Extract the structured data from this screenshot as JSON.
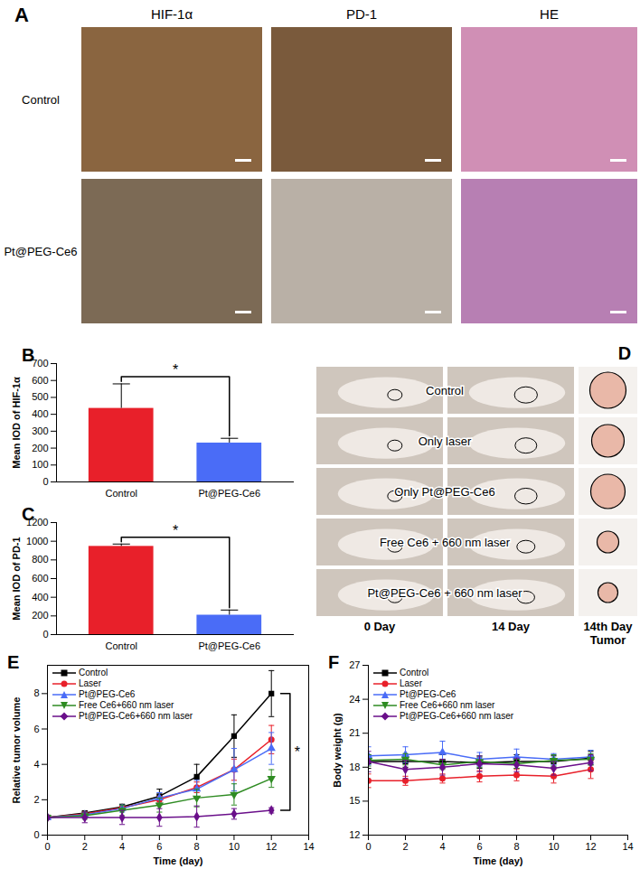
{
  "images": {
    "panel_A": {
      "label": "A",
      "columns": [
        "HIF-1α",
        "PD-1",
        "HE"
      ],
      "rows": [
        "Control",
        "Pt@PEG-Ce6"
      ]
    },
    "panel_D": {
      "label": "D",
      "rows": [
        "Control",
        "Only laser",
        "Only Pt@PEG-Ce6",
        "Free Ce6 + 660 nm laser",
        "Pt@PEG-Ce6 + 660 nm laser"
      ],
      "columns": [
        [
          "0 Day"
        ],
        [
          "14 Day"
        ],
        [
          "14th Day",
          "Tumor"
        ]
      ]
    }
  },
  "chart_data": [
    {
      "panel": "B",
      "type": "bar",
      "categories": [
        "Control",
        "Pt@PEG-Ce6"
      ],
      "values": [
        435,
        230
      ],
      "errors": [
        145,
        28
      ],
      "colors": [
        "#e8202a",
        "#4a6cf7"
      ],
      "y_label": "Mean IOD of HIF-1α",
      "ylim": [
        0,
        700
      ],
      "yticks": [
        0,
        100,
        200,
        300,
        400,
        500,
        600,
        700
      ],
      "annotations": [
        {
          "text": "*",
          "between": [
            "Control",
            "Pt@PEG-Ce6"
          ]
        }
      ]
    },
    {
      "panel": "C",
      "type": "bar",
      "categories": [
        "Control",
        "Pt@PEG-Ce6"
      ],
      "values": [
        945,
        208
      ],
      "errors": [
        25,
        55
      ],
      "colors": [
        "#e8202a",
        "#4a6cf7"
      ],
      "y_label": "Mean IOD of PD-1",
      "ylim": [
        0,
        1200
      ],
      "yticks": [
        0,
        200,
        400,
        600,
        800,
        1000,
        1200
      ],
      "annotations": [
        {
          "text": "*",
          "between": [
            "Control",
            "Pt@PEG-Ce6"
          ]
        }
      ]
    },
    {
      "panel": "E",
      "type": "line",
      "x_label": "Time (day)",
      "y_label": "Relative tumor volume",
      "x": [
        0,
        2,
        4,
        6,
        8,
        10,
        12
      ],
      "xlim": [
        0,
        14
      ],
      "xticks": [
        0,
        2,
        4,
        6,
        8,
        10,
        12,
        14
      ],
      "ylim": [
        0,
        9.6
      ],
      "yticks": [
        0,
        2,
        4,
        6,
        8
      ],
      "legend": "top-left",
      "series": [
        {
          "name": "Control",
          "color": "#000000",
          "marker": "square",
          "values": [
            1,
            1.25,
            1.6,
            2.2,
            3.3,
            5.6,
            8.0
          ],
          "errors": [
            0,
            0.1,
            0.15,
            0.4,
            0.7,
            1.2,
            1.3
          ]
        },
        {
          "name": "Laser",
          "color": "#e8202a",
          "marker": "circle",
          "values": [
            1,
            1.2,
            1.55,
            2.0,
            2.7,
            3.7,
            5.4
          ],
          "errors": [
            0,
            0.1,
            0.1,
            0.2,
            0.3,
            0.6,
            0.8
          ]
        },
        {
          "name": "Pt@PEG-Ce6",
          "color": "#4a6cf7",
          "marker": "triangle",
          "values": [
            1,
            1.15,
            1.5,
            2.1,
            2.6,
            3.7,
            4.9
          ],
          "errors": [
            0,
            0.1,
            0.2,
            0.3,
            0.5,
            1.2,
            0.9
          ]
        },
        {
          "name": "Free Ce6+660 nm laser",
          "color": "#2e8b22",
          "marker": "triangle-down",
          "values": [
            1,
            1.1,
            1.4,
            1.7,
            2.1,
            2.3,
            3.2
          ],
          "errors": [
            0,
            0.2,
            0.3,
            0.4,
            0.5,
            0.6,
            0.5
          ]
        },
        {
          "name": "Pt@PEG-Ce6+660 nm laser",
          "color": "#6a0f8a",
          "marker": "diamond",
          "values": [
            1,
            1.0,
            1.0,
            1.0,
            1.05,
            1.2,
            1.4
          ],
          "errors": [
            0,
            0.3,
            0.4,
            0.5,
            0.6,
            0.3,
            0.15
          ]
        }
      ],
      "annotations": [
        {
          "text": "*",
          "between": [
            "Control",
            "Pt@PEG-Ce6+660 nm laser"
          ]
        }
      ]
    },
    {
      "panel": "F",
      "type": "line",
      "x_label": "Time (day)",
      "y_label": "Body weight (g)",
      "x": [
        0,
        2,
        4,
        6,
        8,
        10,
        12
      ],
      "xlim": [
        0,
        14
      ],
      "xticks": [
        0,
        2,
        4,
        6,
        8,
        10,
        12,
        14
      ],
      "ylim": [
        12,
        27
      ],
      "yticks": [
        12,
        15,
        18,
        21,
        24,
        27
      ],
      "legend": "top-left",
      "series": [
        {
          "name": "Control",
          "color": "#000000",
          "marker": "square",
          "values": [
            18.5,
            18.5,
            18.5,
            18.4,
            18.5,
            18.5,
            18.8
          ],
          "errors": [
            0.6,
            0.5,
            0.6,
            0.5,
            0.6,
            0.5,
            0.6
          ]
        },
        {
          "name": "Laser",
          "color": "#e8202a",
          "marker": "circle",
          "values": [
            16.8,
            16.8,
            17.0,
            17.2,
            17.3,
            17.2,
            17.8
          ],
          "errors": [
            0.6,
            0.4,
            0.4,
            0.5,
            0.5,
            0.6,
            0.8
          ]
        },
        {
          "name": "Pt@PEG-Ce6",
          "color": "#4a6cf7",
          "marker": "triangle",
          "values": [
            19.0,
            19.1,
            19.3,
            18.7,
            18.9,
            18.7,
            18.9
          ],
          "errors": [
            0.8,
            0.7,
            1.0,
            0.6,
            0.7,
            0.5,
            0.6
          ]
        },
        {
          "name": "Free Ce6+660 nm laser",
          "color": "#2e8b22",
          "marker": "triangle-down",
          "values": [
            18.6,
            18.7,
            18.2,
            18.5,
            18.3,
            18.6,
            18.7
          ],
          "errors": [
            0.5,
            0.5,
            0.4,
            0.5,
            0.4,
            0.5,
            0.5
          ]
        },
        {
          "name": "Pt@PEG-Ce6+660 nm laser",
          "color": "#6a0f8a",
          "marker": "diamond",
          "values": [
            18.5,
            17.8,
            18.0,
            18.3,
            18.2,
            17.9,
            18.4
          ],
          "errors": [
            0.9,
            0.8,
            0.7,
            0.7,
            0.6,
            0.6,
            0.7
          ]
        }
      ]
    }
  ]
}
